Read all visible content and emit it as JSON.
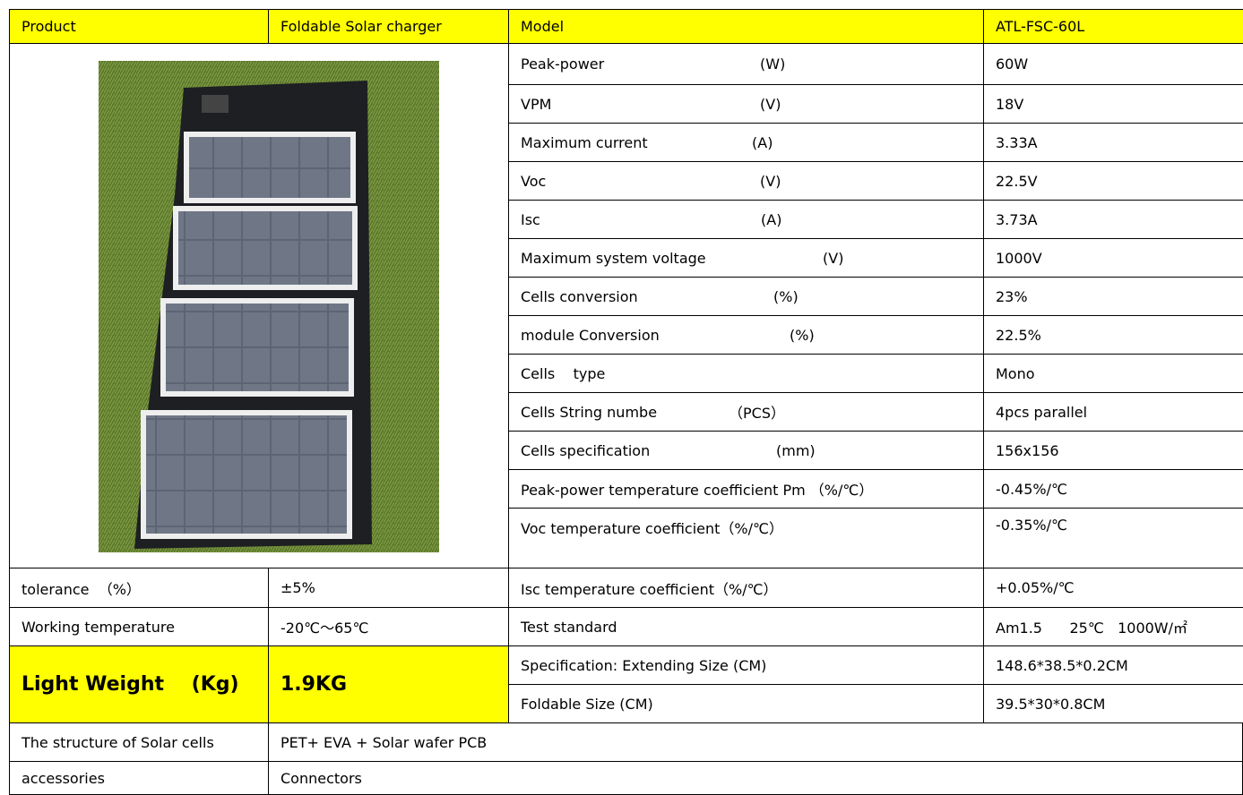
{
  "header": {
    "product_label": "Product",
    "product": "Foldable Solar charger",
    "model_label": "Model",
    "model": "ATL-FSC-60L"
  },
  "specs": [
    {
      "name": "Peak-power",
      "unit": "(W)",
      "value": "60W"
    },
    {
      "name": "VPM",
      "unit": "(V)",
      "value": "18V"
    },
    {
      "name": "Maximum current",
      "unit": "(A)",
      "value": "3.33A"
    },
    {
      "name": "Voc",
      "unit": "(V)",
      "value": "22.5V"
    },
    {
      "name": "Isc",
      "unit": "(A)",
      "value": "3.73A"
    },
    {
      "name": "Maximum system voltage",
      "unit": "(V)",
      "value": "1000V"
    },
    {
      "name": "Cells conversion",
      "unit": "(%)",
      "value": "23%"
    },
    {
      "name": "module Conversion",
      "unit": "(%)",
      "value": "22.5%"
    },
    {
      "name": "Cells    type",
      "value": "Mono"
    },
    {
      "name": "Cells String numbe",
      "unit": "（PCS）",
      "value": "4pcs parallel"
    },
    {
      "name": "Cells specification",
      "unit": "(mm)",
      "value": "156x156"
    },
    {
      "name": "Peak-power temperature coefficient Pm （%/℃）",
      "value": "-0.45%/℃"
    },
    {
      "name": "Voc temperature coefficient（%/℃）",
      "value": "-0.35%/℃"
    }
  ],
  "rows": [
    {
      "label": "tolerance  （%）",
      "value": "±5%",
      "spec": "Isc temperature coefficient（%/℃）",
      "spec_value": "+0.05%/℃"
    },
    {
      "label": "Working temperature",
      "value": "-20℃～65℃",
      "spec": "Test standard",
      "spec_value": "Am1.5      25℃   1000W/㎡"
    }
  ],
  "weight": {
    "label": "Light Weight    (Kg)",
    "value": "1.9KG",
    "specs": [
      {
        "name": "Specification: Extending Size (CM)",
        "value": "148.6*38.5*0.2CM"
      },
      {
        "name": "Foldable Size (CM)",
        "value": "39.5*30*0.8CM"
      }
    ]
  },
  "footer": [
    {
      "label": "The structure of Solar cells",
      "value": "PET+ EVA + Solar wafer PCB"
    },
    {
      "label": "accessories",
      "value": "Connectors"
    }
  ]
}
